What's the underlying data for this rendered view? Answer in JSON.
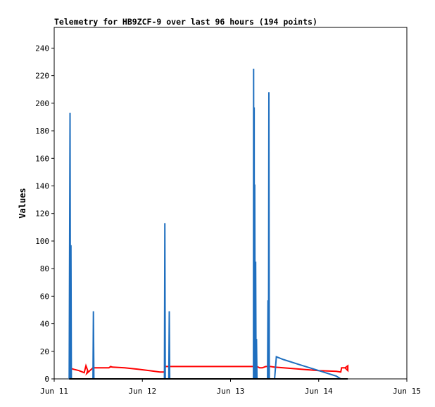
{
  "chart_data": {
    "type": "line",
    "title": "Telemetry for HB9ZCF-9 over last 96 hours (194 points)",
    "xlabel": "",
    "ylabel": "Values",
    "x_ticks": [
      "Jun 11",
      "Jun 12",
      "Jun 13",
      "Jun 14",
      "Jun 15"
    ],
    "y_ticks": [
      0,
      20,
      40,
      60,
      80,
      100,
      120,
      140,
      160,
      180,
      200,
      220,
      240
    ],
    "xlim": [
      0,
      4
    ],
    "ylim": [
      0,
      255
    ],
    "grid": false,
    "legend": "none",
    "series": [
      {
        "color": "#ff0000",
        "x": [
          0.17,
          0.22,
          0.28,
          0.34,
          0.36,
          0.38,
          0.37,
          0.44,
          0.55,
          0.62,
          0.64,
          0.66,
          0.8,
          0.95,
          1.08,
          1.2,
          1.25,
          1.26,
          1.27,
          1.3,
          1.4,
          1.6,
          1.8,
          2.0,
          2.2,
          2.26,
          2.28,
          2.3,
          2.33,
          2.36,
          2.4,
          2.45,
          2.5,
          2.6,
          2.8,
          3.0,
          3.2,
          3.25,
          3.26,
          3.27,
          3.3,
          3.33,
          3.33,
          3.3
        ],
        "y": [
          8,
          7,
          6,
          4.5,
          9.5,
          6,
          4,
          8,
          8,
          8,
          9,
          8.5,
          8,
          7,
          6,
          5,
          5,
          9,
          9,
          9,
          9,
          9,
          9,
          9,
          9,
          9,
          8,
          9,
          8,
          8,
          9,
          9,
          8.5,
          8,
          7,
          6,
          5.5,
          5,
          8,
          8,
          8,
          9.5,
          6,
          8
        ]
      },
      {
        "color": "#1f6fbf",
        "x": [
          0.17,
          0.18,
          0.185,
          0.19,
          0.195,
          0.2,
          0.44,
          0.445,
          0.45,
          1.25,
          1.255,
          1.26,
          1.3,
          1.305,
          1.31,
          2.26,
          2.262,
          2.265,
          2.268,
          2.27,
          2.275,
          2.28,
          2.285,
          2.29,
          2.295,
          2.3,
          2.305,
          2.31,
          2.42,
          2.425,
          2.43,
          2.435,
          2.44,
          2.445,
          2.45,
          2.5,
          2.52,
          2.6,
          2.8,
          3.0,
          3.2,
          3.25,
          3.3
        ],
        "y": [
          0,
          193,
          0,
          97,
          0,
          0,
          0,
          49,
          0,
          0,
          113,
          0,
          0,
          49,
          0,
          0,
          225,
          0,
          197,
          0,
          141,
          0,
          85,
          0,
          29,
          0,
          0,
          0,
          0,
          57,
          0,
          208,
          0,
          0,
          0,
          0,
          16,
          14,
          10,
          6,
          2,
          0,
          0
        ]
      },
      {
        "color": "#000000",
        "x": [
          0.17,
          3.33
        ],
        "y": [
          0,
          0
        ]
      }
    ]
  }
}
